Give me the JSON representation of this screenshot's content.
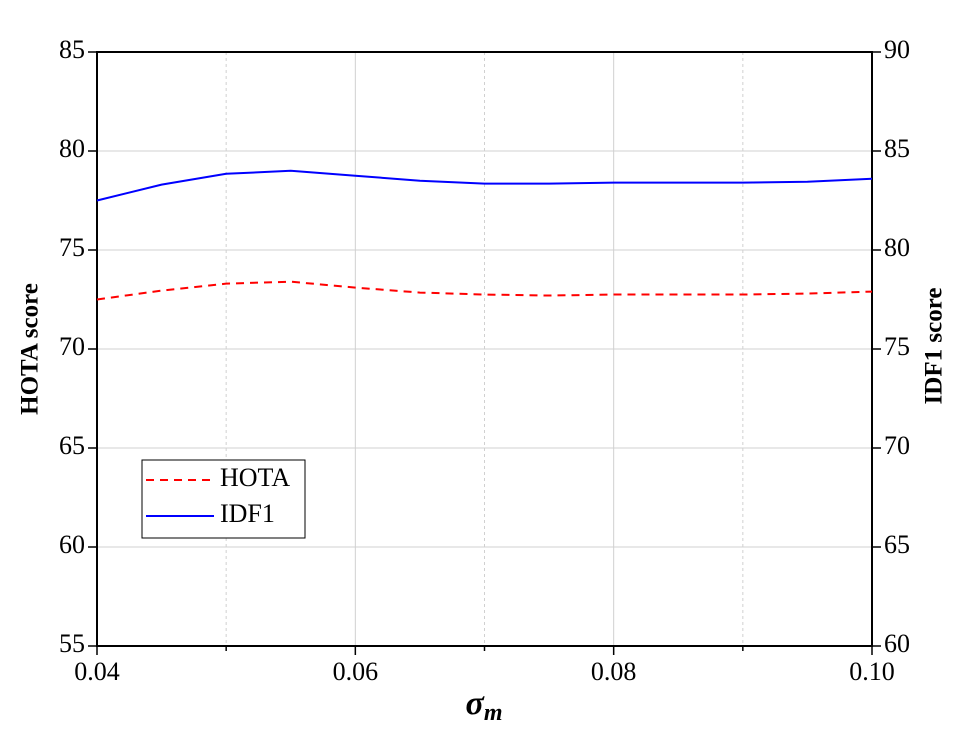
{
  "chart_data": {
    "type": "line",
    "xlabel": "σ",
    "xlabel_sub": "m",
    "ylabel": "HOTA score",
    "y2label": "IDF1 score",
    "x": [
      0.04,
      0.045,
      0.05,
      0.055,
      0.06,
      0.065,
      0.07,
      0.075,
      0.08,
      0.085,
      0.09,
      0.095,
      0.1
    ],
    "series": [
      {
        "name": "HOTA",
        "color": "#ff0000",
        "dash": true,
        "values": [
          72.5,
          72.95,
          73.3,
          73.4,
          73.1,
          72.85,
          72.75,
          72.7,
          72.75,
          72.75,
          72.75,
          72.8,
          72.9
        ]
      },
      {
        "name": "IDF1",
        "color": "#0000ff",
        "axis": "y2",
        "values": [
          82.5,
          83.3,
          83.85,
          84.0,
          83.75,
          83.5,
          83.35,
          83.35,
          83.4,
          83.4,
          83.4,
          83.45,
          83.6
        ]
      }
    ],
    "xlim": [
      0.04,
      0.1
    ],
    "xticks": [
      0.04,
      0.06,
      0.08,
      {
        "value": 0.1,
        "label": "0.10"
      }
    ],
    "xminorticks": [
      0.05,
      0.07,
      0.09
    ],
    "ylim": [
      55,
      85
    ],
    "yticks": [
      55,
      60,
      65,
      70,
      75,
      80,
      85
    ],
    "y2lim": [
      60,
      90
    ],
    "y2ticks": [
      60,
      65,
      70,
      75,
      80,
      85,
      90
    ],
    "grid": true,
    "legend": "lower left"
  }
}
